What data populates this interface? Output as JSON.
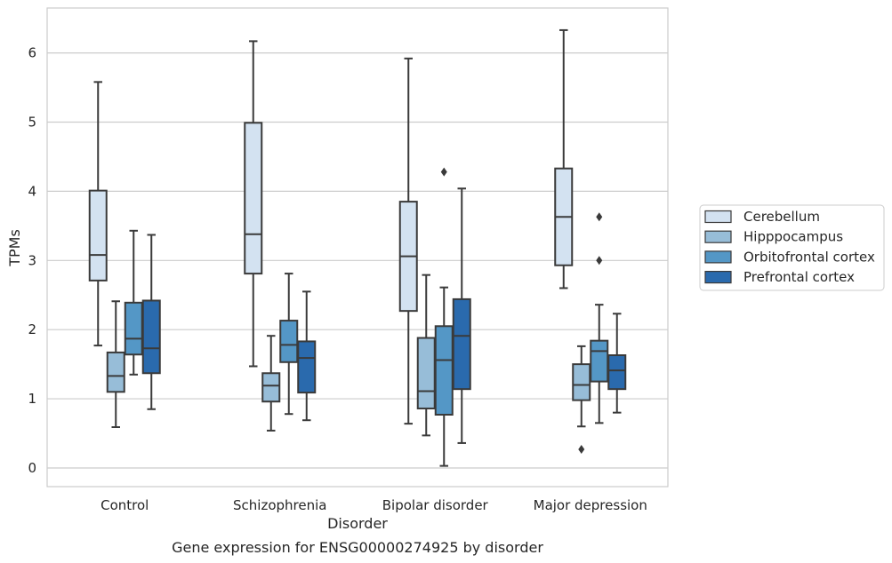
{
  "chart_data": {
    "type": "box",
    "title": "",
    "caption": "Gene expression for ENSG00000274925 by disorder",
    "xlabel": "Disorder",
    "ylabel": "TPMs",
    "ylim": [
      -0.27,
      6.65
    ],
    "yticks": [
      0,
      1,
      2,
      3,
      4,
      5,
      6
    ],
    "grid": "horizontal",
    "legend_position": "right",
    "categories": [
      "Control",
      "Schizophrenia",
      "Bipolar disorder",
      "Major depression"
    ],
    "series": [
      {
        "name": "Cerebellum",
        "color": "#d3e2f1",
        "boxes": [
          {
            "whislo": 1.77,
            "q1": 2.71,
            "med": 3.08,
            "q3": 4.01,
            "whishi": 5.58,
            "fliers": []
          },
          {
            "whislo": 1.47,
            "q1": 2.81,
            "med": 3.38,
            "q3": 4.99,
            "whishi": 6.17,
            "fliers": []
          },
          {
            "whislo": 0.64,
            "q1": 2.27,
            "med": 3.06,
            "q3": 3.85,
            "whishi": 5.92,
            "fliers": []
          },
          {
            "whislo": 2.6,
            "q1": 2.93,
            "med": 3.63,
            "q3": 4.33,
            "whishi": 6.33,
            "fliers": []
          }
        ]
      },
      {
        "name": "Hipppocampus",
        "color": "#97bdd8",
        "boxes": [
          {
            "whislo": 0.59,
            "q1": 1.1,
            "med": 1.33,
            "q3": 1.67,
            "whishi": 2.41,
            "fliers": []
          },
          {
            "whislo": 0.54,
            "q1": 0.96,
            "med": 1.19,
            "q3": 1.37,
            "whishi": 1.91,
            "fliers": []
          },
          {
            "whislo": 0.47,
            "q1": 0.86,
            "med": 1.11,
            "q3": 1.88,
            "whishi": 2.79,
            "fliers": []
          },
          {
            "whislo": 0.6,
            "q1": 0.98,
            "med": 1.2,
            "q3": 1.5,
            "whishi": 1.76,
            "fliers": [
              0.27
            ]
          }
        ]
      },
      {
        "name": "Orbitofrontal cortex",
        "color": "#5497c6",
        "boxes": [
          {
            "whislo": 1.35,
            "q1": 1.64,
            "med": 1.87,
            "q3": 2.39,
            "whishi": 3.43,
            "fliers": []
          },
          {
            "whislo": 0.78,
            "q1": 1.53,
            "med": 1.78,
            "q3": 2.13,
            "whishi": 2.81,
            "fliers": []
          },
          {
            "whislo": 0.03,
            "q1": 0.77,
            "med": 1.56,
            "q3": 2.05,
            "whishi": 2.61,
            "fliers": [
              4.28
            ]
          },
          {
            "whislo": 0.65,
            "q1": 1.25,
            "med": 1.69,
            "q3": 1.84,
            "whishi": 2.36,
            "fliers": [
              3.63,
              3.0
            ]
          }
        ]
      },
      {
        "name": "Prefrontal cortex",
        "color": "#2a6aad",
        "boxes": [
          {
            "whislo": 0.85,
            "q1": 1.37,
            "med": 1.73,
            "q3": 2.42,
            "whishi": 3.37,
            "fliers": []
          },
          {
            "whislo": 0.69,
            "q1": 1.09,
            "med": 1.59,
            "q3": 1.83,
            "whishi": 2.55,
            "fliers": []
          },
          {
            "whislo": 0.36,
            "q1": 1.14,
            "med": 1.91,
            "q3": 2.44,
            "whishi": 4.04,
            "fliers": []
          },
          {
            "whislo": 0.8,
            "q1": 1.14,
            "med": 1.41,
            "q3": 1.63,
            "whishi": 2.23,
            "fliers": []
          }
        ]
      }
    ]
  }
}
